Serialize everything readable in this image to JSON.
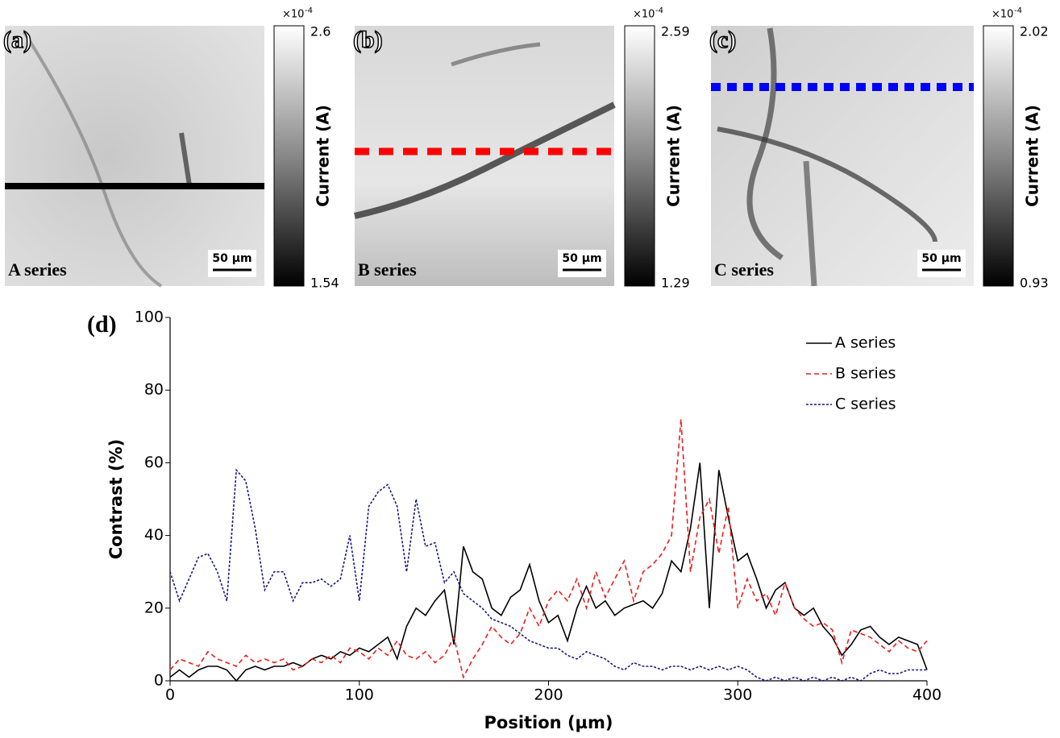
{
  "panels": [
    {
      "label": "(a)",
      "series_label": "A series",
      "scale_bar": "50 µm",
      "colorbar": {
        "multiplier": {
          "base": "×10",
          "exponent": "-4"
        },
        "max": 2.6,
        "min": 1.54,
        "label": "Current (A)"
      }
    },
    {
      "label": "(b)",
      "series_label": "B series",
      "scale_bar": "50 µm",
      "colorbar": {
        "multiplier": {
          "base": "×10",
          "exponent": "-4"
        },
        "max": 2.59,
        "min": 1.29,
        "label": "Current (A)"
      }
    },
    {
      "label": "(c)",
      "series_label": "C series",
      "scale_bar": "50 µm",
      "colorbar": {
        "multiplier": {
          "base": "×10",
          "exponent": "-4"
        },
        "max": 2.02,
        "min": 0.93,
        "label": "Current (A)"
      }
    }
  ],
  "chart_data": {
    "type": "line",
    "panel_label": "(d)",
    "x_label": "Position (µm)",
    "y_label": "Contrast (%)",
    "x": [
      0,
      5,
      10,
      15,
      20,
      25,
      30,
      35,
      40,
      45,
      50,
      55,
      60,
      65,
      70,
      75,
      80,
      85,
      90,
      95,
      100,
      105,
      110,
      115,
      120,
      125,
      130,
      135,
      140,
      145,
      150,
      155,
      160,
      165,
      170,
      175,
      180,
      185,
      190,
      195,
      200,
      205,
      210,
      215,
      220,
      225,
      230,
      235,
      240,
      245,
      250,
      255,
      260,
      265,
      270,
      275,
      280,
      285,
      290,
      295,
      300,
      305,
      310,
      315,
      320,
      325,
      330,
      335,
      340,
      345,
      350,
      355,
      360,
      365,
      370,
      375,
      380,
      385,
      390,
      395,
      400
    ],
    "series": [
      {
        "name": "A series",
        "color": "#000000",
        "line_style": "solid",
        "values": [
          1,
          3,
          1,
          3,
          4,
          4,
          3,
          0,
          3,
          4,
          3,
          4,
          4,
          5,
          4,
          6,
          7,
          6,
          8,
          7,
          9,
          8,
          10,
          12,
          6,
          15,
          20,
          18,
          22,
          25,
          10,
          37,
          30,
          28,
          20,
          18,
          23,
          25,
          32,
          22,
          16,
          18,
          11,
          20,
          26,
          20,
          22,
          18,
          20,
          21,
          22,
          20,
          24,
          33,
          30,
          42,
          60,
          20,
          58,
          45,
          33,
          35,
          28,
          20,
          25,
          27,
          20,
          18,
          20,
          15,
          12,
          7,
          10,
          14,
          15,
          12,
          10,
          12,
          11,
          10,
          3
        ]
      },
      {
        "name": "B series",
        "color": "#ee1c1c",
        "line_style": "dashed",
        "values": [
          3,
          6,
          5,
          4,
          8,
          6,
          5,
          4,
          7,
          5,
          6,
          5,
          6,
          3,
          4,
          6,
          5,
          7,
          5,
          9,
          8,
          6,
          9,
          7,
          11,
          7,
          6,
          8,
          5,
          7,
          12,
          1,
          6,
          10,
          15,
          12,
          10,
          13,
          20,
          15,
          22,
          25,
          22,
          28,
          20,
          30,
          23,
          28,
          33,
          22,
          30,
          32,
          35,
          40,
          72,
          30,
          45,
          50,
          35,
          48,
          20,
          28,
          22,
          24,
          18,
          27,
          20,
          17,
          15,
          16,
          14,
          5,
          14,
          13,
          12,
          10,
          8,
          11,
          9,
          8,
          11
        ]
      },
      {
        "name": "C series",
        "color": "#1a1a80",
        "line_style": "dotted",
        "values": [
          30,
          22,
          28,
          34,
          35,
          30,
          22,
          58,
          55,
          42,
          25,
          30,
          30,
          22,
          27,
          27,
          28,
          26,
          28,
          40,
          22,
          48,
          52,
          54,
          48,
          30,
          50,
          37,
          38,
          27,
          30,
          24,
          22,
          20,
          17,
          16,
          15,
          13,
          11,
          10,
          9,
          9,
          7,
          6,
          8,
          7,
          6,
          4,
          3,
          5,
          4,
          4,
          3,
          4,
          4,
          3,
          4,
          3,
          4,
          3,
          4,
          3,
          1,
          0,
          1,
          0,
          1,
          0,
          1,
          0,
          1,
          0,
          1,
          0,
          2,
          3,
          2,
          2,
          3,
          3,
          3
        ]
      }
    ],
    "xlim": [
      0,
      400
    ],
    "xticks": [
      0,
      100,
      200,
      300,
      400
    ],
    "ylim": [
      0,
      100
    ],
    "yticks": [
      0,
      20,
      40,
      60,
      80,
      100
    ],
    "legend": "upper right"
  }
}
